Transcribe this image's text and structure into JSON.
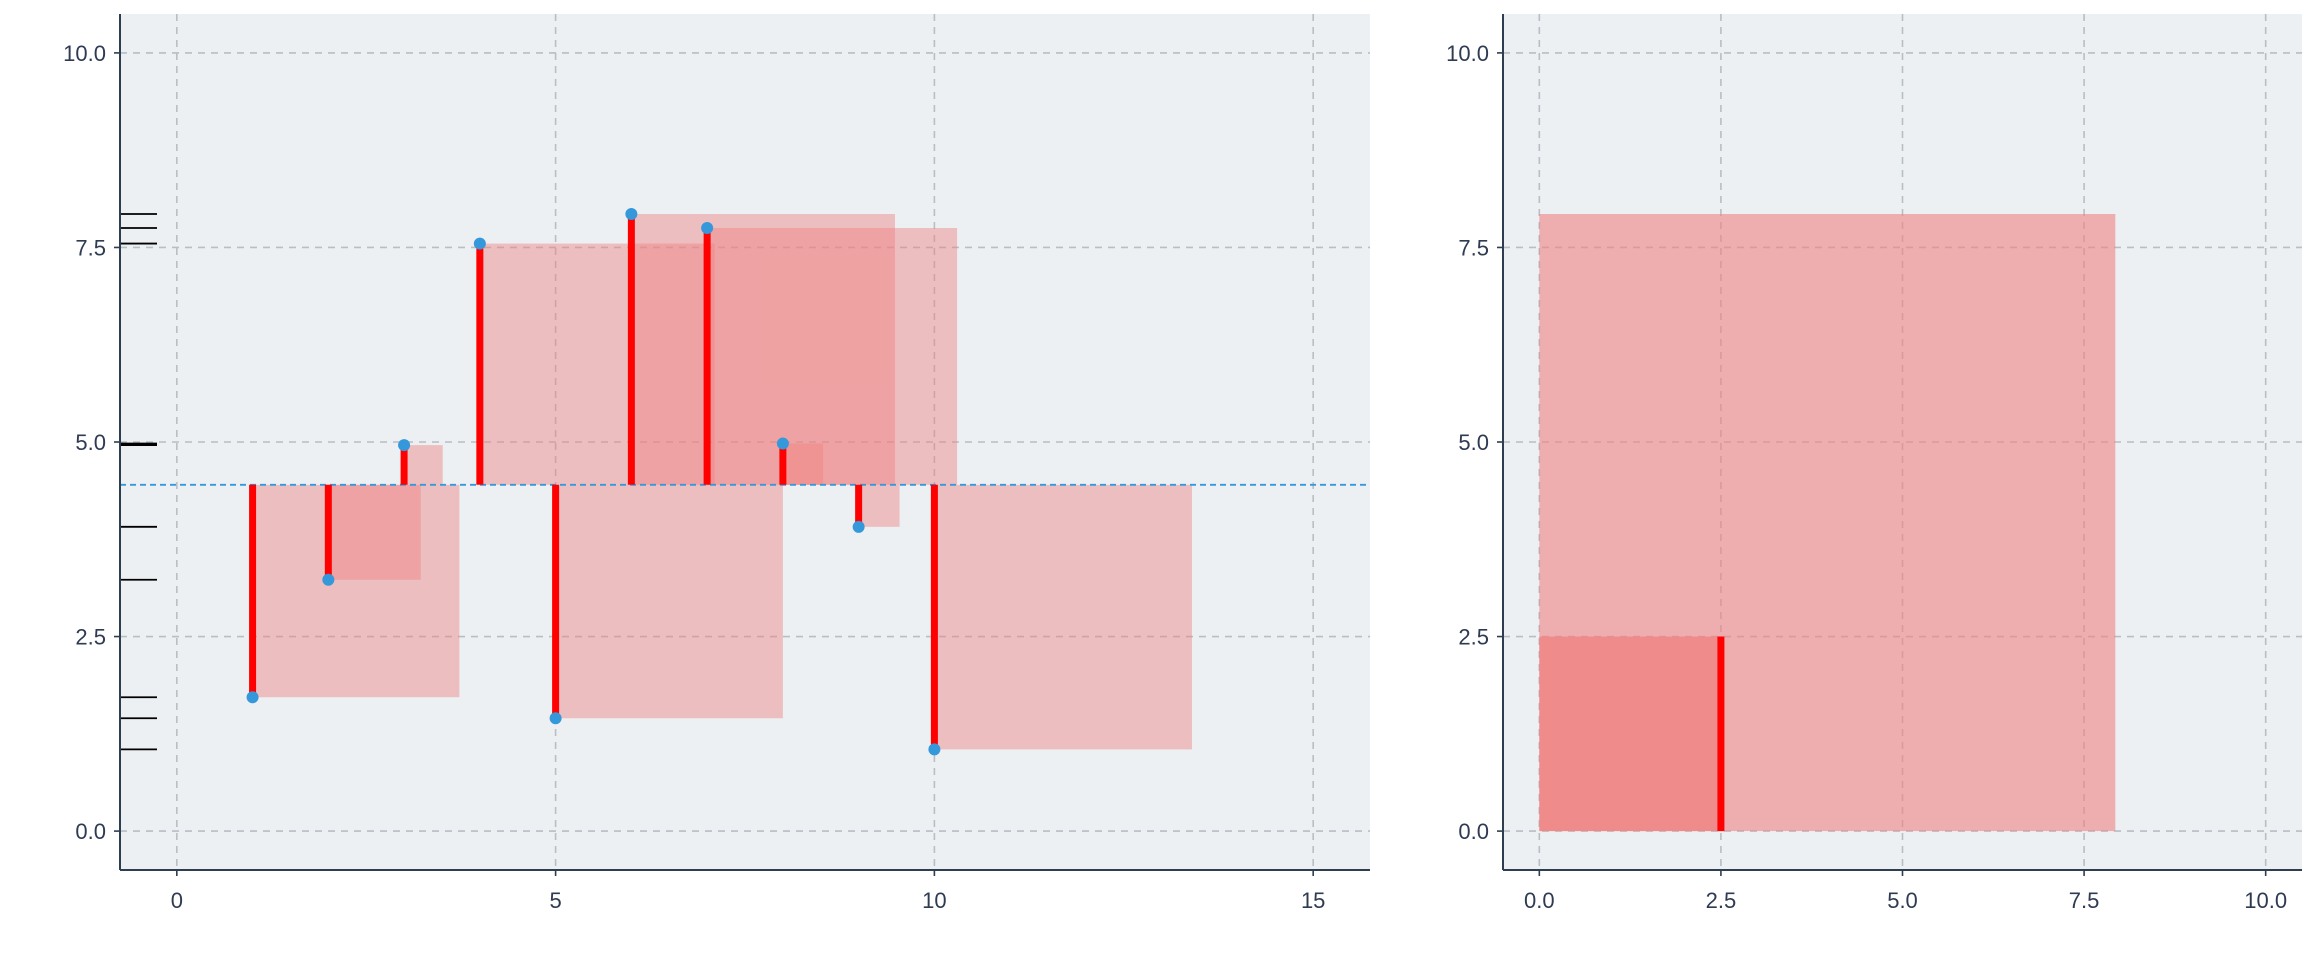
{
  "chart_data": [
    {
      "type": "scatter",
      "title": "",
      "xlabel": "",
      "ylabel": "",
      "xlim": [
        -0.75,
        15.75
      ],
      "ylim": [
        -0.5,
        10.5
      ],
      "x_ticks": [
        0,
        5,
        10,
        15
      ],
      "x_tick_labels": [
        "0",
        "5",
        "10",
        "15"
      ],
      "y_ticks": [
        0,
        2.5,
        5,
        7.5,
        10
      ],
      "y_tick_labels": [
        "0.0",
        "2.5",
        "5.0",
        "7.5",
        "10.0"
      ],
      "grid": true,
      "mean_line": 4.45,
      "points": [
        {
          "x": 1,
          "y": 1.72
        },
        {
          "x": 2,
          "y": 3.23
        },
        {
          "x": 3,
          "y": 4.96
        },
        {
          "x": 4,
          "y": 7.55
        },
        {
          "x": 5,
          "y": 1.45
        },
        {
          "x": 6,
          "y": 7.93
        },
        {
          "x": 7,
          "y": 7.75
        },
        {
          "x": 8,
          "y": 4.98
        },
        {
          "x": 9,
          "y": 3.91
        },
        {
          "x": 10,
          "y": 1.05
        }
      ],
      "colors": {
        "background": "#ecf0f2",
        "segment": "#ff0000",
        "square": "#f08080",
        "point": "#3498db",
        "mean_line": "#3498db",
        "grid": "#b8bec4",
        "axis": "#2c3e50"
      }
    },
    {
      "type": "scatter",
      "title": "",
      "xlabel": "",
      "ylabel": "",
      "xlim": [
        -0.5,
        10.5
      ],
      "ylim": [
        -0.5,
        10.5
      ],
      "x_ticks": [
        0,
        2.5,
        5,
        7.5,
        10
      ],
      "x_tick_labels": [
        "0.0",
        "2.5",
        "5.0",
        "7.5",
        "10.0"
      ],
      "y_ticks": [
        0,
        2.5,
        5,
        7.5,
        10
      ],
      "y_tick_labels": [
        "0.0",
        "2.5",
        "5.0",
        "7.5",
        "10.0"
      ],
      "grid": true,
      "squares": [
        {
          "side": 7.93,
          "opacity": 0.6
        },
        {
          "side": 2.5,
          "opacity": 0.75
        }
      ],
      "segment": {
        "x": 2.5,
        "y0": 0,
        "y1": 2.5
      },
      "colors": {
        "background": "#ecf0f2",
        "segment": "#ff0000",
        "square": "#f08080",
        "grid": "#b8bec4",
        "axis": "#2c3e50"
      }
    }
  ]
}
